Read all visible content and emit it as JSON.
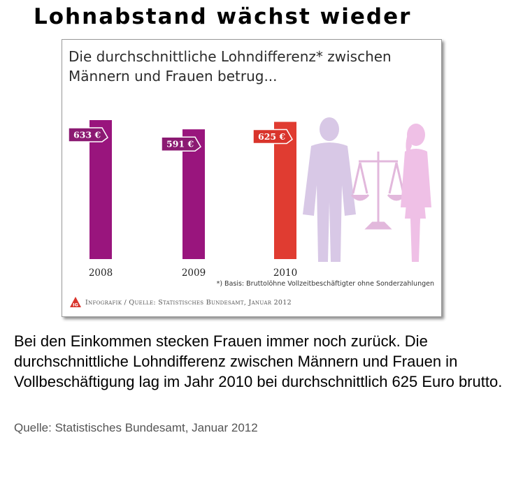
{
  "headline": "Lohnabstand wächst wieder",
  "infographic": {
    "title": "Die durchschnittliche Lohndifferenz* zwischen Männern und Frauen betrug...",
    "footnote": "*) Basis: Bruttolöhne Vollzeitbeschäftigter ohne Sonderzahlungen",
    "credit": "Infografik / Quelle: Statistisches Bundesamt, Januar 2012",
    "logo_text": "IG"
  },
  "chart_data": {
    "type": "bar",
    "title": "Die durchschnittliche Lohndifferenz* zwischen Männern und Frauen betrug...",
    "categories": [
      "2008",
      "2009",
      "2010"
    ],
    "values": [
      633,
      591,
      625
    ],
    "value_labels": [
      "633 €",
      "591 €",
      "625 €"
    ],
    "unit": "€",
    "colors": [
      "#99157d",
      "#99157d",
      "#e03c31"
    ],
    "xlabel": "",
    "ylabel": "",
    "ylim": [
      0,
      633
    ],
    "grid": false,
    "legend": "none"
  },
  "description": "Bei den Einkommen stecken Frauen immer noch zurück. Die durchschnittliche Lohndifferenz zwischen Männern und Frauen in Vollbeschäftigung lag im Jahr 2010 bei durchschnittlich 625 Euro brutto.",
  "source": "Quelle: Statistisches Bundesamt, Januar 2012",
  "colors": {
    "bar_primary": "#99157d",
    "bar_highlight": "#e03c31",
    "label_purple": "#8b1a72",
    "label_red": "#d9342b",
    "silhouette_man": "#d8c8e6",
    "silhouette_woman": "#efc0e6"
  }
}
